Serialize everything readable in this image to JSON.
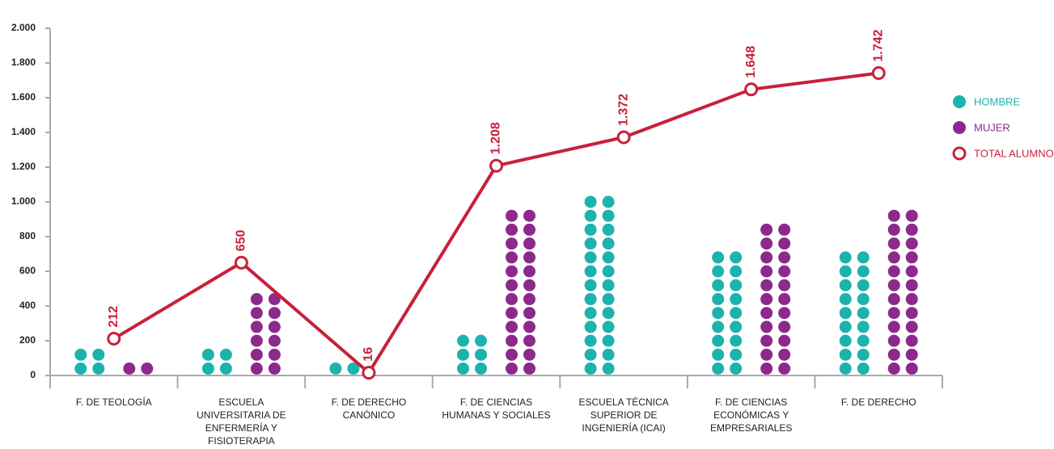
{
  "chart_data": {
    "type": "dot-bar-line",
    "categories": [
      "F. DE TEOLOGÍA",
      "ESCUELA UNIVERSITARIA DE ENFERMERÍA Y FISIOTERAPIA",
      "F. DE DERECHO CANÓNICO",
      "F. DE CIENCIAS HUMANAS Y SOCIALES",
      "ESCUELA TÉCNICA SUPERIOR DE INGENIERÍA (ICAI)",
      "F. DE CIENCIAS ECONÓMICAS Y EMPRESARIALES",
      "F. DE DERECHO"
    ],
    "series": [
      {
        "name": "HOMBRE",
        "color": "#1db3ad",
        "values": [
          130,
          130,
          16,
          210,
          1030,
          740,
          710
        ]
      },
      {
        "name": "MUJER",
        "color": "#8c2a8c",
        "values": [
          82,
          440,
          0,
          960,
          0,
          870,
          980
        ]
      },
      {
        "name": "TOTAL ALUMNOS",
        "color": "#c8203a",
        "values": [
          212,
          650,
          16,
          1208,
          1372,
          1648,
          1742
        ],
        "value_labels": [
          "212",
          "650",
          "16",
          "1.208",
          "1.372",
          "1.648",
          "1.742"
        ]
      }
    ],
    "ylim": [
      0,
      2000
    ],
    "yticks": [
      0,
      200,
      400,
      600,
      800,
      {
        "value": 1000,
        "label": "1.000"
      },
      {
        "value": 1200,
        "label": "1.200"
      },
      {
        "value": 1400,
        "label": "1.400"
      },
      {
        "value": 1600,
        "label": "1.600"
      },
      {
        "value": 1800,
        "label": "1.800"
      },
      {
        "value": 2000,
        "label": "2.000"
      }
    ]
  }
}
